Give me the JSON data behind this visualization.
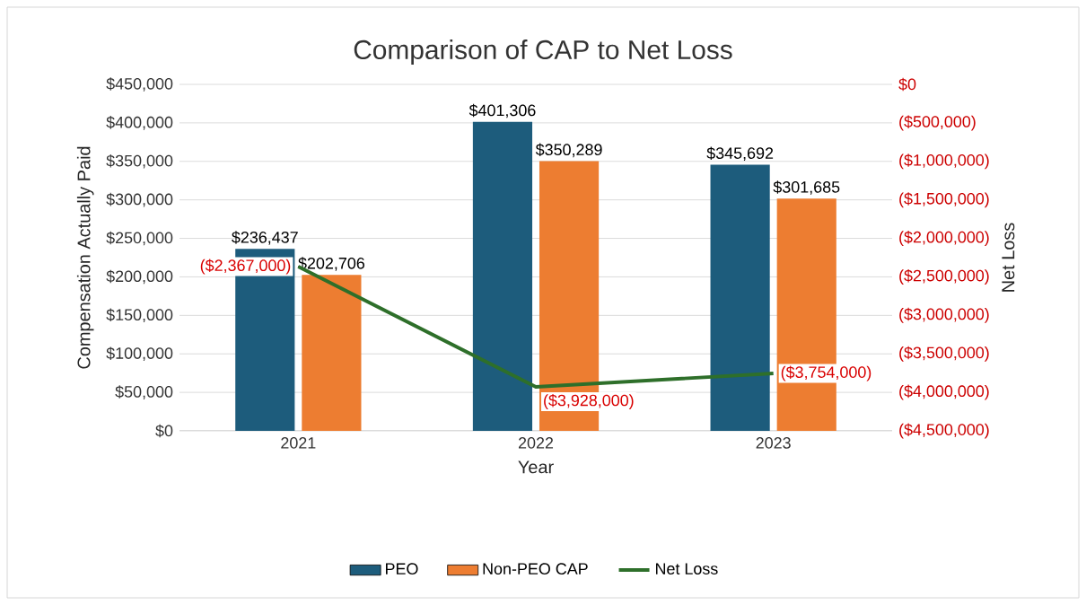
{
  "chart_data": {
    "type": "bar",
    "title": "Comparison of CAP to Net Loss",
    "xlabel": "Year",
    "ylabel": "Compensation  Actually Paid",
    "y2label": "Net Loss",
    "categories": [
      "2021",
      "2022",
      "2023"
    ],
    "series": [
      {
        "name": "PEO",
        "color": "#1d5c7c",
        "values": [
          236437,
          401306,
          345692
        ],
        "value_labels": [
          "$236,437",
          "$401,306",
          "$345,692"
        ]
      },
      {
        "name": "Non-PEO CAP",
        "color": "#ed7d31",
        "values": [
          202706,
          350289,
          301685
        ],
        "value_labels": [
          "$202,706",
          "$350,289",
          "$301,685"
        ]
      },
      {
        "name": "Net Loss",
        "type": "line",
        "axis": "y2",
        "color": "#2e6f2a",
        "values": [
          -2367000,
          -3928000,
          -3754000
        ],
        "value_labels": [
          "($2,367,000)",
          "($3,928,000)",
          "($3,754,000)"
        ]
      }
    ],
    "ylim": [
      0,
      450000
    ],
    "yticks": [
      {
        "value": 0,
        "label": "$0"
      },
      {
        "value": 50000,
        "label": "$50,000"
      },
      {
        "value": 100000,
        "label": "$100,000"
      },
      {
        "value": 150000,
        "label": "$150,000"
      },
      {
        "value": 200000,
        "label": "$200,000"
      },
      {
        "value": 250000,
        "label": "$250,000"
      },
      {
        "value": 300000,
        "label": "$300,000"
      },
      {
        "value": 350000,
        "label": "$350,000"
      },
      {
        "value": 400000,
        "label": "$400,000"
      },
      {
        "value": 450000,
        "label": "$450,000"
      }
    ],
    "y2lim": [
      -4500000,
      0
    ],
    "y2ticks": [
      {
        "value": 0,
        "label": "$0"
      },
      {
        "value": -500000,
        "label": "($500,000)"
      },
      {
        "value": -1000000,
        "label": "($1,000,000)"
      },
      {
        "value": -1500000,
        "label": "($1,500,000)"
      },
      {
        "value": -2000000,
        "label": "($2,000,000)"
      },
      {
        "value": -2500000,
        "label": "($2,500,000)"
      },
      {
        "value": -3000000,
        "label": "($3,000,000)"
      },
      {
        "value": -3500000,
        "label": "($3,500,000)"
      },
      {
        "value": -4000000,
        "label": "($4,000,000)"
      },
      {
        "value": -4500000,
        "label": "($4,500,000)"
      }
    ],
    "grid": "y",
    "legend": "bottom"
  }
}
